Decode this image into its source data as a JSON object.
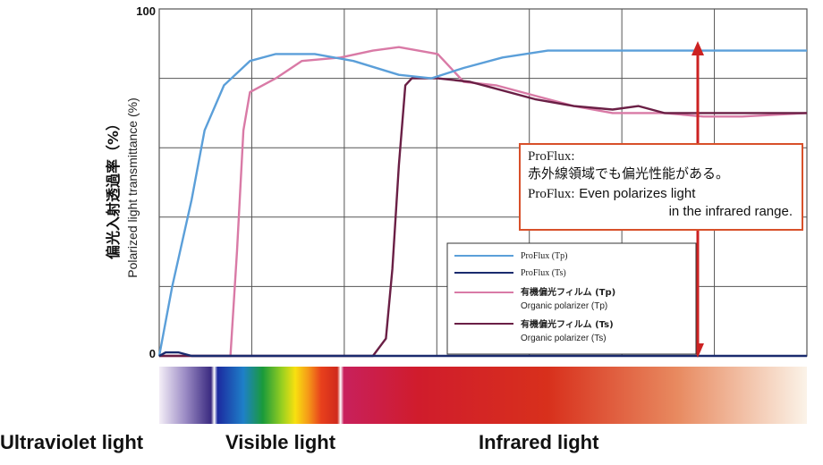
{
  "chart_data": {
    "type": "line",
    "xlabel": "",
    "ylabel_jp": "偏光入射透過率（%）",
    "ylabel_en": "Polarized light transmittance (%)",
    "ylim": [
      0,
      100
    ],
    "y_ticks": [
      "100",
      "0"
    ],
    "grid": true,
    "legend_position": "bottom-right",
    "series": [
      {
        "name": "ProFlux (Tp)",
        "color": "#5b9fd9",
        "points": [
          [
            0,
            0
          ],
          [
            2,
            20
          ],
          [
            5,
            45
          ],
          [
            7,
            65
          ],
          [
            10,
            78
          ],
          [
            14,
            85
          ],
          [
            18,
            87
          ],
          [
            24,
            87
          ],
          [
            30,
            85
          ],
          [
            37,
            81
          ],
          [
            42,
            80
          ],
          [
            47,
            83
          ],
          [
            53,
            86
          ],
          [
            60,
            88
          ],
          [
            70,
            88
          ],
          [
            80,
            88
          ],
          [
            90,
            88
          ],
          [
            100,
            88
          ]
        ]
      },
      {
        "name": "ProFlux (Ts)",
        "color": "#1a2b6e",
        "points": [
          [
            0,
            0
          ],
          [
            1,
            1
          ],
          [
            3,
            1
          ],
          [
            5,
            0
          ],
          [
            100,
            0
          ]
        ]
      },
      {
        "name_jp": "有機偏光フィルム (Tp)",
        "name_en": "Organic polarizer (Tp)",
        "color": "#d97aa6",
        "points": [
          [
            0,
            0
          ],
          [
            11,
            0
          ],
          [
            12,
            30
          ],
          [
            13,
            65
          ],
          [
            14,
            76
          ],
          [
            18,
            80
          ],
          [
            22,
            85
          ],
          [
            28,
            86
          ],
          [
            33,
            88
          ],
          [
            37,
            89
          ],
          [
            40,
            88
          ],
          [
            43,
            87
          ],
          [
            44,
            85
          ],
          [
            47,
            79
          ],
          [
            52,
            78
          ],
          [
            58,
            75
          ],
          [
            64,
            72
          ],
          [
            70,
            70
          ],
          [
            78,
            70
          ],
          [
            84,
            69
          ],
          [
            90,
            69
          ],
          [
            100,
            70
          ]
        ]
      },
      {
        "name_jp": "有機偏光フィルム (Ts)",
        "name_en": "Organic polarizer (Ts)",
        "color": "#6a1f45",
        "points": [
          [
            0,
            0
          ],
          [
            33,
            0
          ],
          [
            35,
            5
          ],
          [
            36,
            25
          ],
          [
            37,
            55
          ],
          [
            38,
            78
          ],
          [
            39,
            80
          ],
          [
            43,
            80
          ],
          [
            48,
            79
          ],
          [
            52,
            77
          ],
          [
            58,
            74
          ],
          [
            64,
            72
          ],
          [
            70,
            71
          ],
          [
            74,
            72
          ],
          [
            78,
            70
          ],
          [
            84,
            70
          ],
          [
            90,
            70
          ],
          [
            100,
            70
          ]
        ]
      }
    ]
  },
  "callout": {
    "title": "ProFlux:",
    "jp_text": "赤外線領域でも偏光性能がある。",
    "en_brand": "ProFlux:",
    "en_line1": "Even polarizes light",
    "en_line2": "in the infrared range."
  },
  "regions": {
    "uv": "Ultraviolet light",
    "visible": "Visible light",
    "infrared": "Infrared light"
  },
  "colors": {
    "grid": "#555555",
    "arrow": "#cc2222",
    "callout_border": "#d8502a"
  }
}
